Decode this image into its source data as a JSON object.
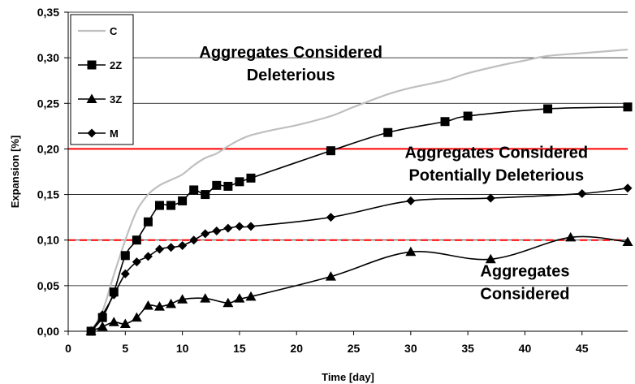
{
  "chart_data": {
    "type": "line",
    "xlabel": "Time [day]",
    "ylabel": "Expansion [%]",
    "xlim": [
      0,
      49
    ],
    "ylim": [
      0,
      0.35
    ],
    "xticks": [
      0,
      5,
      10,
      15,
      20,
      25,
      30,
      35,
      40,
      45
    ],
    "xtick_labels": [
      "0",
      "5",
      "10",
      "15",
      "20",
      "25",
      "30",
      "35",
      "40",
      "45"
    ],
    "yticks": [
      0,
      0.05,
      0.1,
      0.15,
      0.2,
      0.25,
      0.3,
      0.35
    ],
    "ytick_labels": [
      "0,00",
      "0,05",
      "0,10",
      "0,15",
      "0,20",
      "0,25",
      "0,30",
      "0,35"
    ],
    "grid": "horizontal",
    "legend_position": "top-left",
    "series": [
      {
        "name": "C",
        "color": "#bfbfbf",
        "marker": "none",
        "x": [
          2,
          3,
          4,
          5,
          6,
          7,
          8,
          9,
          10,
          11,
          12,
          13,
          14,
          15,
          16,
          18,
          20,
          23,
          25,
          28,
          30,
          33,
          35,
          38,
          40,
          42,
          45,
          49
        ],
        "y": [
          0.0,
          0.022,
          0.062,
          0.1,
          0.132,
          0.15,
          0.16,
          0.166,
          0.172,
          0.182,
          0.19,
          0.195,
          0.203,
          0.21,
          0.215,
          0.221,
          0.226,
          0.236,
          0.246,
          0.26,
          0.267,
          0.275,
          0.283,
          0.292,
          0.297,
          0.302,
          0.305,
          0.309
        ]
      },
      {
        "name": "2Z",
        "color": "#000000",
        "marker": "square",
        "x": [
          2,
          3,
          4,
          5,
          6,
          7,
          8,
          9,
          10,
          11,
          12,
          13,
          14,
          15,
          16,
          23,
          28,
          33,
          35,
          42,
          49
        ],
        "y": [
          0.0,
          0.015,
          0.043,
          0.083,
          0.1,
          0.12,
          0.138,
          0.138,
          0.143,
          0.155,
          0.15,
          0.16,
          0.159,
          0.164,
          0.168,
          0.198,
          0.218,
          0.23,
          0.236,
          0.244,
          0.246
        ]
      },
      {
        "name": "3Z",
        "color": "#000000",
        "marker": "triangle",
        "x": [
          2,
          3,
          4,
          5,
          6,
          7,
          8,
          9,
          10,
          12,
          14,
          15,
          16,
          23,
          30,
          37,
          44,
          49
        ],
        "y": [
          0.0,
          0.005,
          0.01,
          0.008,
          0.015,
          0.028,
          0.027,
          0.03,
          0.035,
          0.036,
          0.031,
          0.036,
          0.038,
          0.06,
          0.087,
          0.079,
          0.103,
          0.098
        ]
      },
      {
        "name": "M",
        "color": "#000000",
        "marker": "diamond",
        "x": [
          2,
          3,
          4,
          5,
          6,
          7,
          8,
          9,
          10,
          11,
          12,
          13,
          14,
          15,
          16,
          23,
          30,
          37,
          45,
          49
        ],
        "y": [
          0.0,
          0.018,
          0.04,
          0.063,
          0.076,
          0.082,
          0.09,
          0.092,
          0.094,
          0.1,
          0.107,
          0.11,
          0.113,
          0.115,
          0.115,
          0.125,
          0.143,
          0.146,
          0.151,
          0.157
        ]
      }
    ],
    "thresholds": [
      {
        "y": 0.2,
        "color": "#ff0000",
        "style": "solid"
      },
      {
        "y": 0.1,
        "color": "#ff0000",
        "style": "dashed"
      }
    ],
    "annotations": [
      {
        "lines": [
          "Aggregates Considered",
          "Deleterious"
        ],
        "x": 19.5,
        "y": 0.3
      },
      {
        "lines": [
          "Aggregates Considered",
          "Potentially Deleterious"
        ],
        "x": 37.5,
        "y": 0.19
      },
      {
        "lines": [
          "Aggregates",
          "Considered"
        ],
        "x": 40,
        "y": 0.06
      }
    ]
  }
}
